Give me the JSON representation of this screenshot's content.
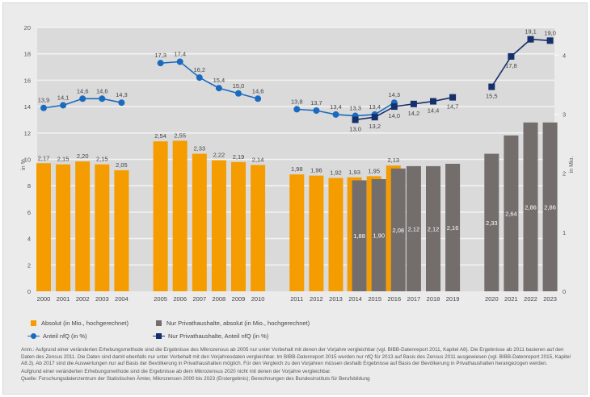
{
  "chart_data": {
    "type": "bar+line",
    "ylabel_left": "in %",
    "ylabel_right": "in Mio.",
    "ylim_left": [
      0,
      20
    ],
    "yticks_left": [
      "0",
      "2",
      "4",
      "6",
      "8",
      "10",
      "12",
      "14",
      "16",
      "18",
      "20"
    ],
    "ylim_right": [
      0,
      4.47
    ],
    "yticks_right": [
      "0",
      "1",
      "2",
      "3",
      "4"
    ],
    "grid": true,
    "legend_position": "bottom",
    "categories": [
      "2000",
      "2001",
      "2002",
      "2003",
      "2004",
      "2005",
      "2006",
      "2007",
      "2008",
      "2009",
      "2010",
      "2011",
      "2012",
      "2013",
      "2014",
      "2015",
      "2016",
      "2017",
      "2018",
      "2019",
      "2020",
      "2021",
      "2022",
      "2023"
    ],
    "series": [
      {
        "name": "Absolut (in Mio., hochgerechnet)",
        "type": "bar",
        "axis": "right",
        "color": "#f59c00",
        "values": [
          2.17,
          2.15,
          2.2,
          2.15,
          2.05,
          2.54,
          2.55,
          2.33,
          2.22,
          2.19,
          2.14,
          1.98,
          1.96,
          1.92,
          1.93,
          1.95,
          2.13,
          null,
          null,
          null,
          null,
          null,
          null,
          null
        ],
        "labels": [
          "2,17",
          "2,15",
          "2,20",
          "2,15",
          "2,05",
          "2,54",
          "2,55",
          "2,33",
          "2,22",
          "2,19",
          "2,14",
          "1,98",
          "1,96",
          "1,92",
          "1,93",
          "1,95",
          "2,13",
          null,
          null,
          null,
          null,
          null,
          null,
          null
        ]
      },
      {
        "name": "Nur Privathaushalte, absolut (in Mio., hochgerechnet)",
        "type": "bar",
        "axis": "right",
        "color": "#736e6c",
        "values": [
          null,
          null,
          null,
          null,
          null,
          null,
          null,
          null,
          null,
          null,
          null,
          null,
          null,
          null,
          1.88,
          1.9,
          2.08,
          2.12,
          2.12,
          2.16,
          2.33,
          2.64,
          2.86,
          2.86
        ],
        "labels": [
          null,
          null,
          null,
          null,
          null,
          null,
          null,
          null,
          null,
          null,
          null,
          null,
          null,
          null,
          "1,88",
          "1,90",
          "2,08",
          "2,12",
          "2,12",
          "2,16",
          "2,33",
          "2,64",
          "2,86",
          "2,86"
        ]
      },
      {
        "name": "Anteil nfQ (in %)",
        "type": "line",
        "axis": "left",
        "color": "#1a6bbf",
        "marker": "circle",
        "values": [
          13.9,
          14.1,
          14.6,
          14.6,
          14.3,
          17.3,
          17.4,
          16.2,
          15.4,
          15.0,
          14.6,
          13.8,
          13.7,
          13.4,
          13.3,
          13.4,
          14.3,
          null,
          null,
          null,
          null,
          null,
          null,
          null
        ],
        "labels": [
          "13,9",
          "14,1",
          "14,6",
          "14,6",
          "14,3",
          "17,3",
          "17,4",
          "16,2",
          "15,4",
          "15,0",
          "14,6",
          "13,8",
          "13,7",
          "13,4",
          "13,3",
          "13,4",
          "14,3",
          null,
          null,
          null,
          null,
          null,
          null,
          null
        ]
      },
      {
        "name": "Nur Privathaushalte, Anteil nfQ (in %)",
        "type": "line",
        "axis": "left",
        "color": "#15306b",
        "marker": "square",
        "values": [
          null,
          null,
          null,
          null,
          null,
          null,
          null,
          null,
          null,
          null,
          null,
          null,
          null,
          null,
          13.0,
          13.2,
          14.0,
          14.2,
          14.4,
          14.7,
          15.5,
          17.8,
          19.1,
          19.0
        ],
        "labels": [
          null,
          null,
          null,
          null,
          null,
          null,
          null,
          null,
          null,
          null,
          null,
          null,
          null,
          null,
          "13,0",
          "13,2",
          "14,0",
          "14,2",
          "14,4",
          "14,7",
          "15,5",
          "17,8",
          "19,1",
          "19,0"
        ]
      }
    ]
  },
  "legend": {
    "items": [
      {
        "label": "Absolut (in Mio., hochgerechnet)",
        "color": "#f59c00"
      },
      {
        "label": "Nur Privathaushalte, absolut (in Mio., hochgerechnet)",
        "color": "#736e6c"
      },
      {
        "label": "Anteil nfQ (in %)",
        "color": "#1a6bbf"
      },
      {
        "label": "Nur Privathaushalte, Anteil nfQ (in %)",
        "color": "#15306b"
      }
    ]
  },
  "notes": {
    "anm": "Anm.: Aufgrund einer veränderten Erhebungsmethode sind die Ergebnisse des Mikrozensus ab 2005 nur unter Vorbehalt mit denen der Vorjahre vergleichbar (vgl. BIBB-Datenreport 2011, Kapitel A8). Die Ergebnisse ab 2011 basieren auf den Daten des Zensus 2011. Die Daten sind damit ebenfalls nur unter Vorbehalt mit den Vorjahresdaten vergleichbar. Im BIBB-Datenreport 2015 wurden nur nfQ für 2013 auf Basis des Zensus 2011 ausgewiesen (vgl. BIBB-Datenreport 2015, Kapitel A8.3). Ab 2017 sind die Auswertungen nur auf Basis der Bevölkerung in Privathaushalten möglich. Für den Vergleich zu den Vorjahren müssen deshalb Ergebnisse auf Basis der Bevölkerung in Privathaushalten herangezogen werden.",
    "anm2": "Aufgrund einer veränderten Erhebungsmethode sind die Ergebnisse ab dem Mikrozensus 2020 nicht mit denen der Vorjahre vergleichbar.",
    "source": "Quelle: Forschungsdatenzentrum der Statistischen Ämter, Mikrozensen 2000 bis 2023 (Erstergebnis); Berechnungen des Bundesinstituts für Berufsbildung"
  }
}
